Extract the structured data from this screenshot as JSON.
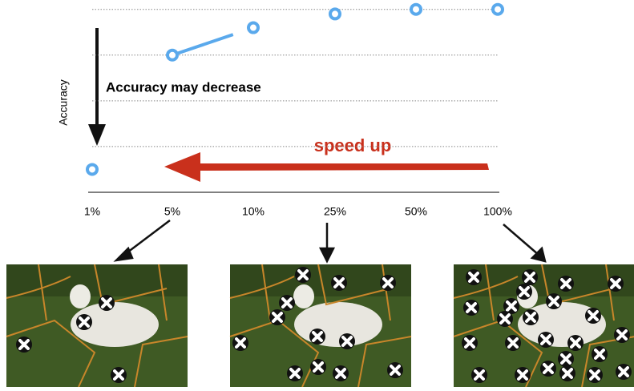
{
  "chart_data": {
    "type": "line",
    "y_label": "Accuracy",
    "categories": [
      "1%",
      "5%",
      "10%",
      "25%",
      "50%",
      "100%"
    ],
    "series": [
      {
        "color": "#5aa9ec",
        "values": [
          0.5,
          3.0,
          3.6,
          3.9,
          4.0,
          4.0
        ]
      }
    ],
    "ylim": [
      0,
      4.1
    ],
    "yticks": [
      1,
      2,
      3,
      4
    ],
    "grid": true,
    "annotations": [
      "Accuracy may decrease",
      "speed up"
    ]
  }
}
